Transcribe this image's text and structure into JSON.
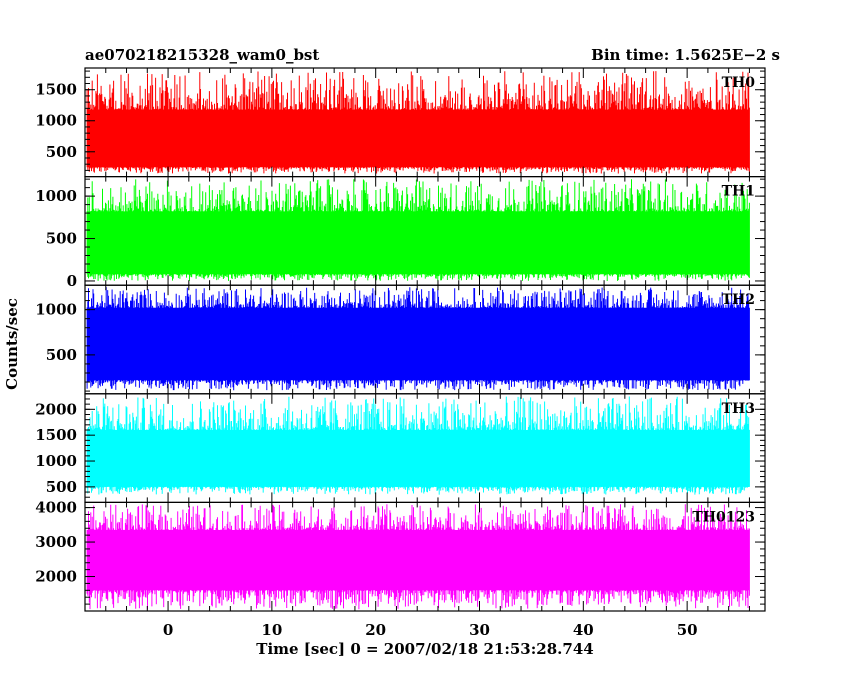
{
  "chart_data": {
    "type": "line",
    "title_left": "ae070218215328_wam0_bst",
    "title_right": "Bin time: 1.5625E−2 s",
    "xlabel": "Time [sec] 0 = 2007/02/18 21:53:28.744",
    "ylabel": "Counts/sec",
    "xlim": [
      -8,
      57.5
    ],
    "x_range": [
      -7.8,
      56
    ],
    "x_ticks": [
      0,
      10,
      20,
      30,
      40,
      50
    ],
    "x_tick_labels": [
      "0",
      "10",
      "20",
      "30",
      "40",
      "50"
    ],
    "panels": [
      {
        "label": "TH0",
        "color": "#ff0000",
        "ylim": [
          100,
          1850
        ],
        "y_ticks": [
          500,
          1000,
          1500
        ],
        "y_tick_labels": [
          "500",
          "1000",
          "1500"
        ],
        "band": [
          250,
          1180
        ],
        "range": [
          150,
          1800
        ]
      },
      {
        "label": "TH1",
        "color": "#00ff00",
        "ylim": [
          -50,
          1230
        ],
        "y_ticks": [
          0,
          500,
          1000
        ],
        "y_tick_labels": [
          "0",
          "500",
          "1000"
        ],
        "band": [
          80,
          820
        ],
        "range": [
          0,
          1200
        ]
      },
      {
        "label": "TH2",
        "color": "#0000ff",
        "ylim": [
          70,
          1270
        ],
        "y_ticks": [
          500,
          1000
        ],
        "y_tick_labels": [
          "500",
          "1000"
        ],
        "band": [
          220,
          1020
        ],
        "range": [
          110,
          1250
        ]
      },
      {
        "label": "TH3",
        "color": "#00ffff",
        "ylim": [
          200,
          2300
        ],
        "y_ticks": [
          500,
          1000,
          1500,
          2000
        ],
        "y_tick_labels": [
          "500",
          "1000",
          "1500",
          "2000"
        ],
        "band": [
          500,
          1600
        ],
        "range": [
          350,
          2250
        ]
      },
      {
        "label": "TH0123",
        "color": "#ff00ff",
        "ylim": [
          1000,
          4150
        ],
        "y_ticks": [
          2000,
          3000,
          4000
        ],
        "y_tick_labels": [
          "2000",
          "3000",
          "4000"
        ],
        "band": [
          1600,
          3350
        ],
        "range": [
          1050,
          4100
        ]
      }
    ]
  }
}
